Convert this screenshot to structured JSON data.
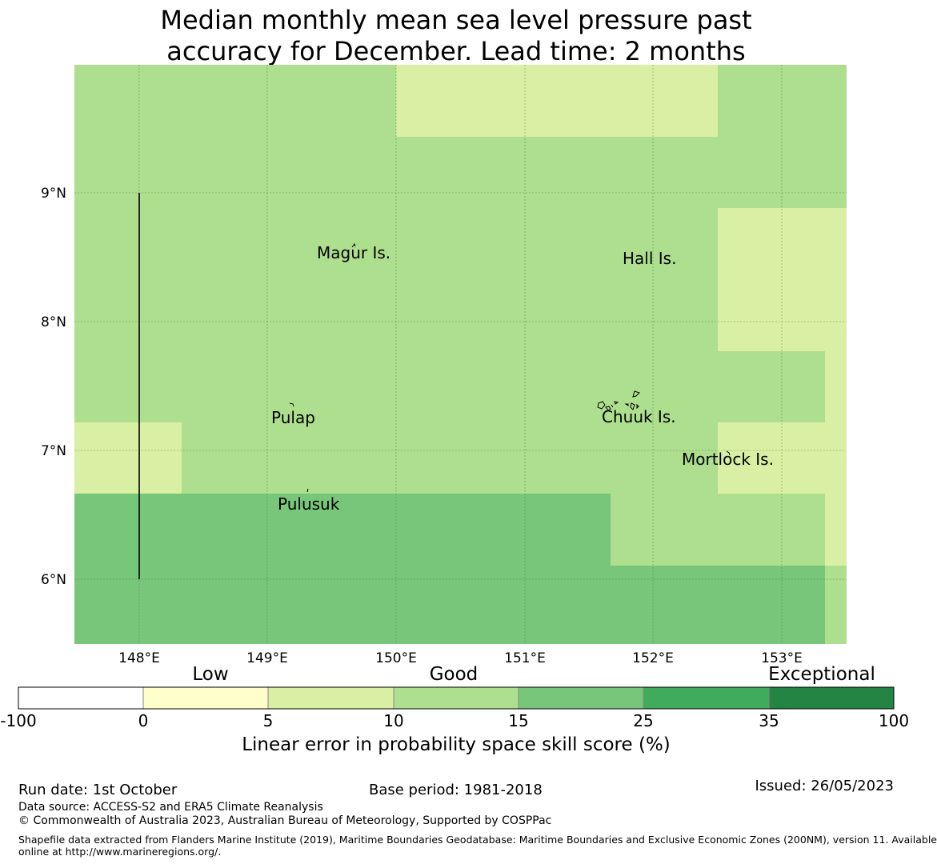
{
  "title": {
    "line1": "Median monthly mean sea level pressure past",
    "line2": "accuracy for December. Lead time: 2 months"
  },
  "map": {
    "lat_labels": [
      "9°N",
      "8°N",
      "7°N",
      "6°N"
    ],
    "lon_labels": [
      "148°E",
      "149°E",
      "150°E",
      "151°E",
      "152°E",
      "153°E"
    ],
    "places": [
      {
        "id": "magur",
        "name": "Magur Is."
      },
      {
        "id": "hall",
        "name": "Hall Is."
      },
      {
        "id": "pulap",
        "name": "Pulap"
      },
      {
        "id": "chuuk",
        "name": "Chuuk Is."
      },
      {
        "id": "mortlock",
        "name": "Mortlock Is."
      },
      {
        "id": "pulusuk",
        "name": "Pulusuk"
      }
    ],
    "category_colors": {
      "5-10": "#d9efa3",
      "10-15": "#addf8e",
      "15-25": "#78c679",
      "25-35": "#41ab5d",
      "35-100": "#238443"
    }
  },
  "colorbar": {
    "category_labels": [
      "Low",
      "Good",
      "Exceptional"
    ],
    "ticks": [
      "-100",
      "0",
      "5",
      "10",
      "15",
      "25",
      "35",
      "100"
    ],
    "colors": [
      "#ffffff",
      "#ffffcc",
      "#d9efa3",
      "#addf8e",
      "#78c679",
      "#41ab5d",
      "#238443"
    ],
    "axis_label": "Linear error in probability space skill score (%)"
  },
  "footer": {
    "run_date": "Run date: 1st October",
    "base_period": "Base period: 1981-2018",
    "issued": "Issued: 26/05/2023",
    "data_source": "Data source: ACCESS-S2 and ERA5 Climate Reanalysis",
    "copyright": "© Commonwealth of Australia 2023, Australian Bureau of Meteorology, Supported by COSPPac",
    "shapefile_line1": "Shapefile data extracted from Flanders Marine Institute (2019), Maritime Boundaries Geodatabase: Maritime Boundaries and Exclusive Economic Zones (200NM), version 11. Available",
    "shapefile_line2": "online at http://www.marineregions.org/."
  }
}
